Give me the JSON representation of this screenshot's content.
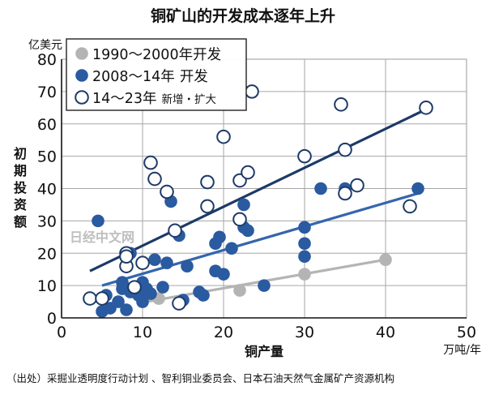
{
  "chart_data": {
    "type": "scatter",
    "title": "铜矿山的开发成本逐年上升",
    "ylabel": "初期投资额",
    "y_unit": "亿美元",
    "xlabel": "铜产量",
    "x_unit": "万吨/年",
    "xlim": [
      0,
      50
    ],
    "ylim": [
      0,
      80
    ],
    "x_ticks": [
      0,
      10,
      20,
      30,
      40,
      50
    ],
    "y_ticks": [
      0,
      10,
      20,
      30,
      40,
      50,
      60,
      70,
      80
    ],
    "grid": true,
    "legend_position": "top-left",
    "watermark": "日经中文网",
    "source": "（出处）采掘业透明度行动计划 、智利铜业委员会、日本石油天然气金属矿产资源机构",
    "series": [
      {
        "name": "1990～2000年开发",
        "legend_main": "1990～2000年开发",
        "legend_suffix": "",
        "marker": "filled",
        "color": "#b4b4b4",
        "trend_color": "#b4b4b4",
        "points": [
          [
            12,
            6
          ],
          [
            22,
            8.5
          ],
          [
            30,
            13.5
          ],
          [
            40,
            18
          ]
        ],
        "trend": [
          [
            10.5,
            5
          ],
          [
            40,
            18
          ]
        ]
      },
      {
        "name": "2008～14年 开发",
        "legend_main": "2008～14年",
        "legend_suffix": "开发",
        "marker": "filled",
        "color": "#2a5aa0",
        "trend_color": "#3566ad",
        "points": [
          [
            4.5,
            30
          ],
          [
            5,
            2
          ],
          [
            5.5,
            7
          ],
          [
            6,
            3
          ],
          [
            7,
            5
          ],
          [
            7.5,
            11
          ],
          [
            7.5,
            9
          ],
          [
            8,
            2.5
          ],
          [
            8.5,
            8
          ],
          [
            8.5,
            20
          ],
          [
            9,
            9
          ],
          [
            9.5,
            7
          ],
          [
            10,
            5
          ],
          [
            10,
            11
          ],
          [
            10.5,
            9
          ],
          [
            11,
            7.5
          ],
          [
            11.5,
            18
          ],
          [
            12.5,
            9.5
          ],
          [
            13,
            17
          ],
          [
            13.5,
            36
          ],
          [
            14.5,
            25.5
          ],
          [
            15,
            5.5
          ],
          [
            15.5,
            16
          ],
          [
            17,
            8
          ],
          [
            17.5,
            7
          ],
          [
            19,
            23
          ],
          [
            19,
            14.5
          ],
          [
            19.5,
            25
          ],
          [
            20,
            13.5
          ],
          [
            21,
            21.5
          ],
          [
            22.5,
            35
          ],
          [
            22.5,
            28
          ],
          [
            23,
            27
          ],
          [
            25,
            10
          ],
          [
            30,
            28
          ],
          [
            30,
            23
          ],
          [
            30,
            19
          ],
          [
            32,
            40
          ],
          [
            35,
            40
          ],
          [
            44,
            40
          ]
        ],
        "trend": [
          [
            5,
            10
          ],
          [
            44,
            38.5
          ]
        ]
      },
      {
        "name": "14～23年 新増・扩大",
        "legend_main": "14～23年",
        "legend_suffix": "新增・扩大",
        "marker": "hollow",
        "color": "#1d3a66",
        "trend_color": "#1d3a66",
        "points": [
          [
            3.5,
            6
          ],
          [
            5,
            6
          ],
          [
            8,
            20
          ],
          [
            8,
            16
          ],
          [
            8,
            19
          ],
          [
            9,
            9.5
          ],
          [
            10,
            17
          ],
          [
            11,
            48
          ],
          [
            11.5,
            43
          ],
          [
            13,
            39
          ],
          [
            14,
            27
          ],
          [
            14.5,
            4.5
          ],
          [
            18,
            42
          ],
          [
            18,
            34.5
          ],
          [
            20,
            56
          ],
          [
            22,
            30.5
          ],
          [
            22,
            42.5
          ],
          [
            23,
            45
          ],
          [
            23.5,
            70
          ],
          [
            30,
            50
          ],
          [
            34.5,
            66
          ],
          [
            35,
            52
          ],
          [
            35,
            38.5
          ],
          [
            36.5,
            41
          ],
          [
            43,
            34.5
          ],
          [
            45,
            65
          ]
        ],
        "trend": [
          [
            3.5,
            14.5
          ],
          [
            45,
            64.5
          ]
        ]
      }
    ]
  }
}
